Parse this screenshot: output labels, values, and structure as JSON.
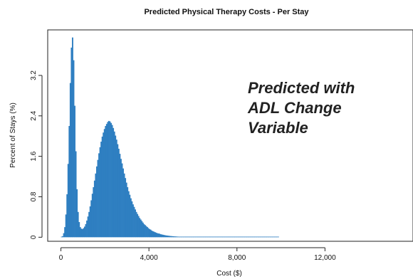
{
  "chart_data": {
    "type": "bar",
    "title": "Predicted Physical Therapy Costs - Per Stay",
    "xlabel": "Cost ($)",
    "ylabel": "Percent of Stays (%)",
    "xlim": [
      -600,
      16000
    ],
    "ylim": [
      -0.08,
      4.1
    ],
    "x_ticks": [
      0,
      4000,
      8000,
      12000
    ],
    "x_tick_labels": [
      "0",
      "4,000",
      "8,000",
      "12,000"
    ],
    "y_ticks": [
      0,
      0.8,
      1.6,
      2.4,
      3.2
    ],
    "y_tick_labels": [
      "0",
      "0.8",
      "1.6",
      "2.4",
      "3.2"
    ],
    "bin_width": 50,
    "x_start": 0,
    "color": "#2f7fc1",
    "grid": false,
    "legend": "none",
    "annotation": "Predicted with\nADL Change\nVariable",
    "values": [
      0.0,
      0.02,
      0.08,
      0.2,
      0.45,
      0.85,
      1.45,
      2.2,
      3.05,
      3.75,
      3.95,
      3.5,
      2.6,
      1.7,
      0.95,
      0.5,
      0.3,
      0.2,
      0.17,
      0.16,
      0.18,
      0.21,
      0.26,
      0.33,
      0.41,
      0.5,
      0.61,
      0.73,
      0.86,
      0.99,
      1.12,
      1.26,
      1.4,
      1.53,
      1.66,
      1.78,
      1.89,
      1.99,
      2.07,
      2.14,
      2.2,
      2.24,
      2.28,
      2.3,
      2.29,
      2.26,
      2.22,
      2.16,
      2.09,
      2.01,
      1.93,
      1.84,
      1.75,
      1.65,
      1.55,
      1.46,
      1.36,
      1.26,
      1.17,
      1.08,
      0.99,
      0.91,
      0.84,
      0.77,
      0.71,
      0.65,
      0.6,
      0.55,
      0.5,
      0.46,
      0.42,
      0.38,
      0.35,
      0.32,
      0.29,
      0.26,
      0.24,
      0.22,
      0.2,
      0.18,
      0.16,
      0.15,
      0.13,
      0.12,
      0.11,
      0.1,
      0.09,
      0.08,
      0.075,
      0.07,
      0.06,
      0.055,
      0.05,
      0.045,
      0.04,
      0.036,
      0.033,
      0.03,
      0.027,
      0.024,
      0.022,
      0.02,
      0.018,
      0.016,
      0.015,
      0.013,
      0.012,
      0.011,
      0.01,
      0.009,
      0.008,
      0.007,
      0.007,
      0.006,
      0.006,
      0.005,
      0.005,
      0.004,
      0.004,
      0.004,
      0.003,
      0.003,
      0.003,
      0.003,
      0.002,
      0.002,
      0.002,
      0.002,
      0.002,
      0.002,
      0.002,
      0.001,
      0.001,
      0.001,
      0.001,
      0.001,
      0.001,
      0.001,
      0.001,
      0.001,
      0.001,
      0.001,
      0.001,
      0.001,
      0.001,
      0.001,
      0.001,
      0.001,
      0.001,
      0.001,
      0.001,
      0.001,
      0.001,
      0.001,
      0.001,
      0.001,
      0.001,
      0.001,
      0.001,
      0.001,
      0.001,
      0.001,
      0.001,
      0.001,
      0.001,
      0.001,
      0.001,
      0.001,
      0.001,
      0.001,
      0.001,
      0.001,
      0.001,
      0.001,
      0.001,
      0.001,
      0.001,
      0.001,
      0.001,
      0.001,
      0.001,
      0.001,
      0.001,
      0.001,
      0.001,
      0.001,
      0.001,
      0.001,
      0.001,
      0.001,
      0.001,
      0.001,
      0.001,
      0.001,
      0.001,
      0.001,
      0.001,
      0.001
    ]
  }
}
